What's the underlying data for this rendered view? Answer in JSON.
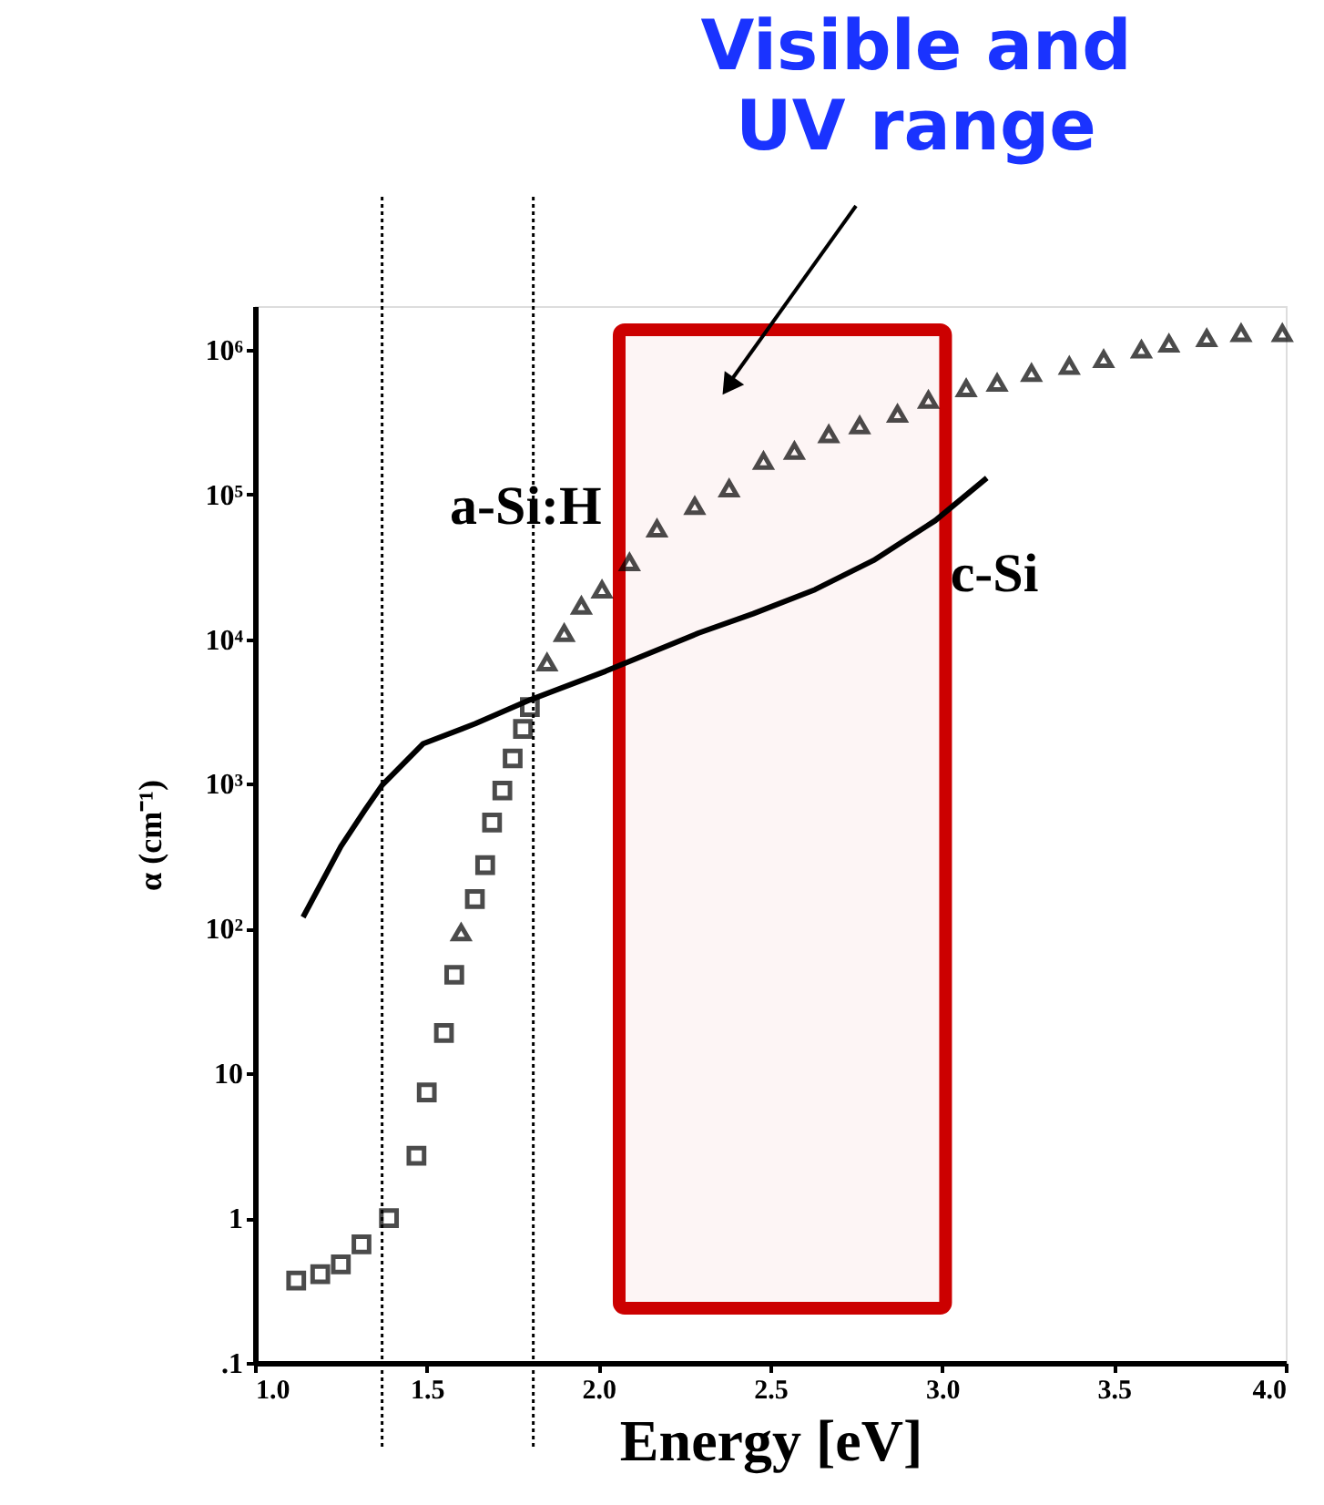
{
  "chart_data": {
    "type": "scatter",
    "xlabel": "Energy  [eV]",
    "ylabel": "α (cm⁻¹)",
    "xlim": [
      1.0,
      4.0
    ],
    "xticks": [
      {
        "value": 1.0,
        "label": "1.0"
      },
      1.5,
      {
        "value": 2.0,
        "label": "2.0"
      },
      2.5,
      {
        "value": 3.0,
        "label": "3.0"
      },
      3.5,
      {
        "value": 4.0,
        "label": "4.0"
      }
    ],
    "ylim": [
      0.1,
      2000000
    ],
    "log": "y",
    "yticks": [
      {
        "value": 0.1,
        "label": ".1"
      },
      1,
      10,
      {
        "value": 100,
        "label": "10²"
      },
      {
        "value": 1000,
        "label": "10³"
      },
      {
        "value": 10000,
        "label": "10⁴"
      },
      {
        "value": 100000,
        "label": "10⁵"
      },
      {
        "value": 1000000,
        "label": "10⁶"
      }
    ],
    "grid": false,
    "series": [
      {
        "marker": "square",
        "color": "#000000",
        "x": [
          1.12,
          1.19,
          1.25,
          1.31,
          1.39,
          1.47,
          1.5,
          1.55,
          1.58,
          1.64,
          1.67,
          1.69,
          1.72,
          1.75,
          1.78,
          1.8
        ],
        "values": [
          0.37,
          0.41,
          0.48,
          0.66,
          1.0,
          2.7,
          7.4,
          19,
          48,
          160,
          275,
          540,
          900,
          1500,
          2400,
          3400
        ]
      },
      {
        "name": "a-Si:H",
        "marker": "triangle",
        "color": "#000000",
        "x": [
          1.6,
          1.85,
          1.9,
          1.95,
          2.01,
          2.09,
          2.17,
          2.28,
          2.38,
          2.48,
          2.57,
          2.67,
          2.76,
          2.87,
          2.96,
          3.07,
          3.16,
          3.26,
          3.37,
          3.47,
          3.58,
          3.66,
          3.77,
          3.87,
          3.99
        ],
        "values": [
          94,
          6900,
          11000,
          17000,
          22000,
          34000,
          58000,
          83000,
          110000,
          170000,
          200000,
          260000,
          300000,
          360000,
          450000,
          540000,
          590000,
          690000,
          770000,
          860000,
          1000000,
          1100000,
          1200000,
          1300000,
          1300000
        ]
      },
      {
        "name": "c-Si",
        "type": "line",
        "marker": "none",
        "line_style": "solid",
        "color": "#000000",
        "x": [
          1.14,
          1.25,
          1.32,
          1.37,
          1.49,
          1.64,
          1.8,
          2.02,
          2.29,
          2.45,
          2.63,
          2.8,
          2.98,
          3.13
        ],
        "values": [
          120,
          370,
          660,
          980,
          1900,
          2600,
          3800,
          6000,
          11000,
          15000,
          22000,
          35000,
          66000,
          130000
        ]
      }
    ],
    "ref_lines": [
      {
        "axis": "x",
        "value": 1.37,
        "label": null,
        "color": "#000000",
        "line_style": "dotted"
      },
      {
        "axis": "x",
        "value": 1.81,
        "label": null,
        "color": "#000000",
        "line_style": "dotted"
      }
    ],
    "bands": [
      {
        "axis": "x",
        "from": 2.06,
        "to": 3.01,
        "label": null,
        "color": "#cc0000"
      }
    ],
    "annotations": [
      "Visible and\nUV range"
    ]
  }
}
